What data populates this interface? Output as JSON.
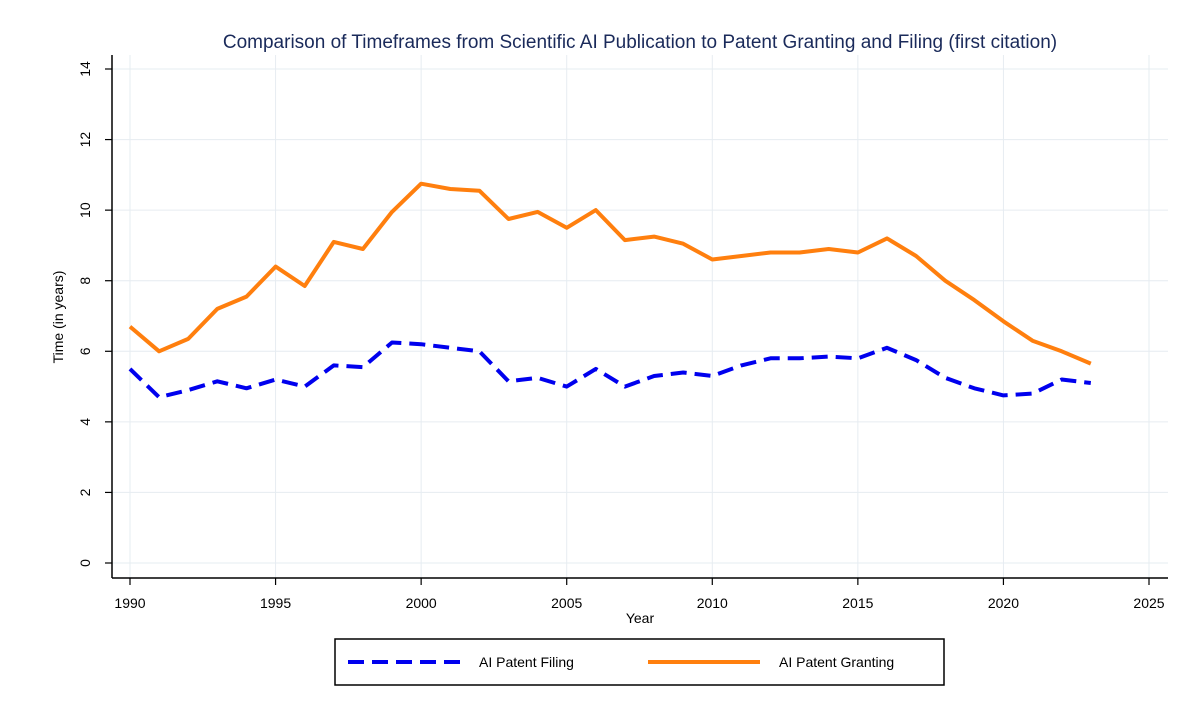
{
  "chart_data": {
    "type": "line",
    "title": "Comparison of Timeframes from Scientific AI Publication to Patent Granting and Filing (first citation)",
    "xlabel": "Year",
    "ylabel": "Time (in years)",
    "xlim": [
      1990,
      2025
    ],
    "ylim": [
      0,
      14
    ],
    "xticks": [
      1990,
      1995,
      2000,
      2005,
      2010,
      2015,
      2020,
      2025
    ],
    "yticks": [
      0,
      2,
      4,
      6,
      8,
      10,
      12,
      14
    ],
    "grid": true,
    "legend_position": "bottom",
    "x": [
      1990,
      1991,
      1992,
      1993,
      1994,
      1995,
      1996,
      1997,
      1998,
      1999,
      2000,
      2001,
      2002,
      2003,
      2004,
      2005,
      2006,
      2007,
      2008,
      2009,
      2010,
      2011,
      2012,
      2013,
      2014,
      2015,
      2016,
      2017,
      2018,
      2019,
      2020,
      2021,
      2022,
      2023
    ],
    "series": [
      {
        "name": "AI Patent Filing",
        "color": "#0000ee",
        "style": "dashed",
        "values": [
          5.5,
          4.7,
          4.9,
          5.15,
          4.95,
          5.2,
          5.0,
          5.6,
          5.55,
          6.25,
          6.2,
          6.1,
          6.0,
          5.15,
          5.25,
          5.0,
          5.5,
          5.0,
          5.3,
          5.4,
          5.3,
          5.6,
          5.8,
          5.8,
          5.85,
          5.8,
          6.1,
          5.75,
          5.25,
          4.95,
          4.75,
          4.8,
          5.2,
          5.1
        ]
      },
      {
        "name": "AI Patent Granting",
        "color": "#ff7f0e",
        "style": "solid",
        "values": [
          6.7,
          6.0,
          6.35,
          7.2,
          7.55,
          8.4,
          7.85,
          9.1,
          8.9,
          9.95,
          10.75,
          10.6,
          10.55,
          9.75,
          9.95,
          9.5,
          10.0,
          9.15,
          9.25,
          9.05,
          8.6,
          8.7,
          8.8,
          8.8,
          8.9,
          8.8,
          9.2,
          8.7,
          8.0,
          7.45,
          6.85,
          6.3,
          6.0,
          5.65
        ]
      }
    ]
  }
}
